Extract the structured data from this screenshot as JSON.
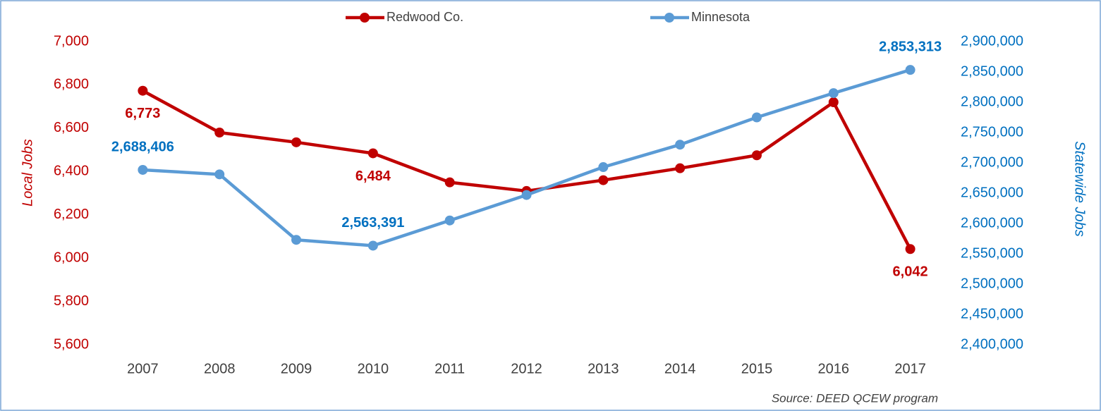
{
  "chart_data": {
    "type": "line",
    "categories": [
      "2007",
      "2008",
      "2009",
      "2010",
      "2011",
      "2012",
      "2013",
      "2014",
      "2015",
      "2016",
      "2017"
    ],
    "series": [
      {
        "name": "Redwood Co.",
        "color": "#c00000",
        "axis": "y",
        "values": [
          6773,
          6580,
          6535,
          6484,
          6350,
          6310,
          6360,
          6415,
          6475,
          6720,
          6042
        ],
        "value_labels": [
          "6,773",
          null,
          null,
          "6,484",
          null,
          null,
          null,
          null,
          null,
          null,
          "6,042"
        ]
      },
      {
        "name": "Minnesota",
        "color": "#5b9bd5",
        "label_color": "#0070c0",
        "axis": "y2",
        "values": [
          2688406,
          2681000,
          2573000,
          2563391,
          2605000,
          2647000,
          2693000,
          2730000,
          2775000,
          2815000,
          2853313
        ],
        "value_labels": [
          "2,688,406",
          null,
          null,
          "2,563,391",
          null,
          null,
          null,
          null,
          null,
          null,
          "2,853,313"
        ]
      }
    ],
    "ylabel": "Local Jobs",
    "y2label": "Statewide Jobs",
    "ylim": [
      5600,
      7000
    ],
    "yticks": [
      {
        "value": 5600,
        "label": "5,600"
      },
      {
        "value": 5800,
        "label": "5,800"
      },
      {
        "value": 6000,
        "label": "6,000"
      },
      {
        "value": 6200,
        "label": "6,200"
      },
      {
        "value": 6400,
        "label": "6,400"
      },
      {
        "value": 6600,
        "label": "6,600"
      },
      {
        "value": 6800,
        "label": "6,800"
      },
      {
        "value": 7000,
        "label": "7,000"
      }
    ],
    "y2lim": [
      2400000,
      2900000
    ],
    "y2ticks": [
      {
        "value": 2400000,
        "label": "2,400,000"
      },
      {
        "value": 2450000,
        "label": "2,450,000"
      },
      {
        "value": 2500000,
        "label": "2,500,000"
      },
      {
        "value": 2550000,
        "label": "2,550,000"
      },
      {
        "value": 2600000,
        "label": "2,600,000"
      },
      {
        "value": 2650000,
        "label": "2,650,000"
      },
      {
        "value": 2700000,
        "label": "2,700,000"
      },
      {
        "value": 2750000,
        "label": "2,750,000"
      },
      {
        "value": 2800000,
        "label": "2,800,000"
      },
      {
        "value": 2850000,
        "label": "2,850,000"
      },
      {
        "value": 2900000,
        "label": "2,900,000"
      }
    ],
    "legend": "top",
    "source": "Source: DEED QCEW program"
  }
}
